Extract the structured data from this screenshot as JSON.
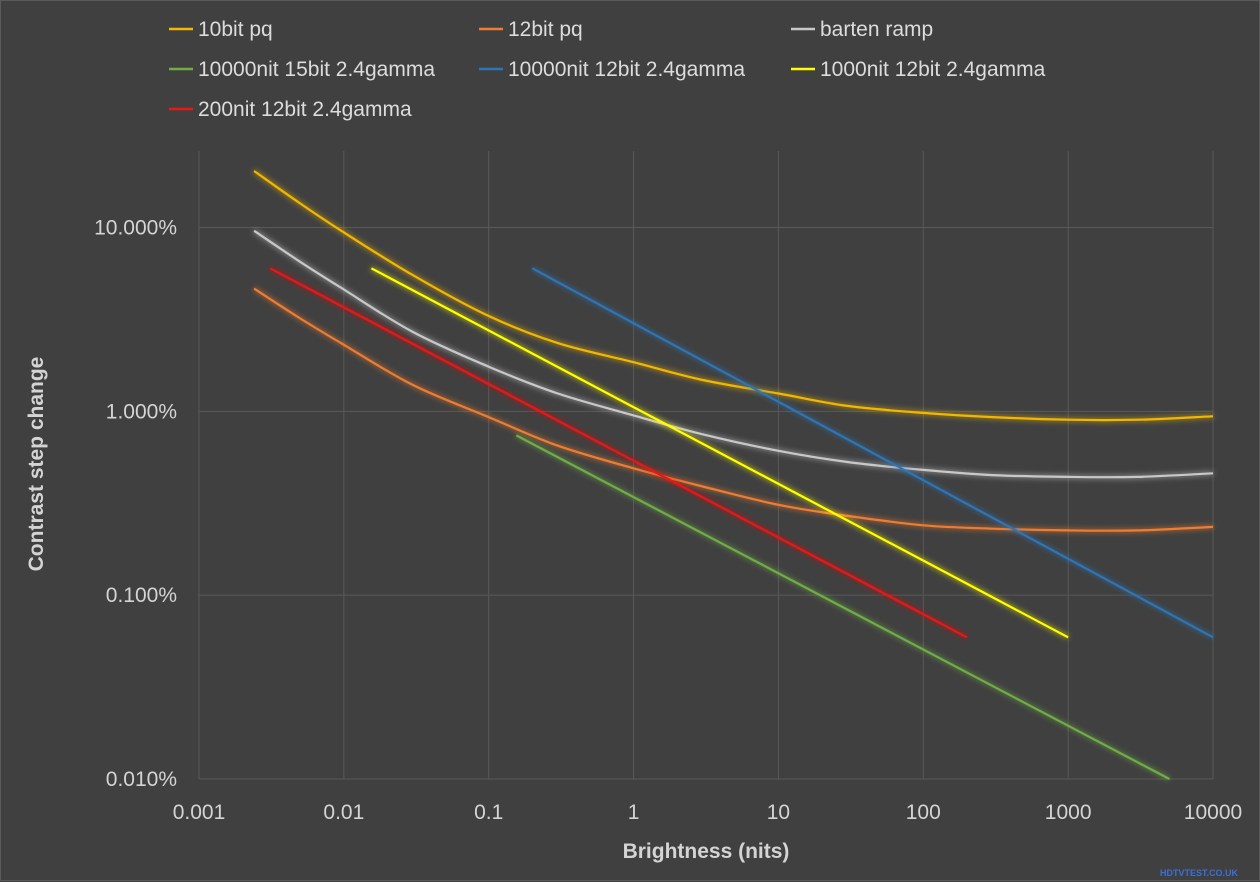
{
  "chart_data": {
    "type": "line",
    "title": "",
    "xlabel": "Brightness (nits)",
    "ylabel": "Contrast step change",
    "x_scale": "log",
    "y_scale": "log",
    "xlim": [
      0.001,
      10000
    ],
    "ylim": [
      0.0001,
      0.5
    ],
    "x_ticks": [
      {
        "value": 0.001,
        "label": "0.001"
      },
      {
        "value": 0.01,
        "label": "0.01"
      },
      {
        "value": 0.1,
        "label": "0.1"
      },
      {
        "value": 1,
        "label": "1"
      },
      {
        "value": 10,
        "label": "10"
      },
      {
        "value": 100,
        "label": "100"
      },
      {
        "value": 1000,
        "label": "1000"
      },
      {
        "value": 10000,
        "label": "10000"
      }
    ],
    "y_ticks": [
      {
        "value": 0.0001,
        "label": "0.010%"
      },
      {
        "value": 0.001,
        "label": "0.100%"
      },
      {
        "value": 0.01,
        "label": "1.000%"
      },
      {
        "value": 0.1,
        "label": "10.000%"
      }
    ],
    "grid": true,
    "legend_position": "top",
    "series": [
      {
        "name": "10bit pq",
        "color": "#f2b705",
        "x": [
          0.0024,
          0.005,
          0.01,
          0.03,
          0.1,
          0.3,
          1,
          3,
          10,
          30,
          100,
          300,
          1000,
          3000,
          10000
        ],
        "y": [
          0.203,
          0.135,
          0.094,
          0.055,
          0.033,
          0.0235,
          0.0185,
          0.0148,
          0.0125,
          0.0107,
          0.0098,
          0.0093,
          0.009,
          0.009,
          0.0094
        ]
      },
      {
        "name": "12bit pq",
        "color": "#ee7d31",
        "x": [
          0.0024,
          0.005,
          0.01,
          0.03,
          0.1,
          0.3,
          1,
          3,
          10,
          30,
          100,
          300,
          1000,
          3000,
          10000
        ],
        "y": [
          0.0465,
          0.032,
          0.023,
          0.0139,
          0.0093,
          0.0065,
          0.0049,
          0.0039,
          0.0031,
          0.0027,
          0.0024,
          0.0023,
          0.00225,
          0.00225,
          0.00235
        ]
      },
      {
        "name": "barten ramp",
        "color": "#c8c8c8",
        "x": [
          0.0024,
          0.005,
          0.01,
          0.03,
          0.1,
          0.3,
          1,
          3,
          10,
          30,
          100,
          300,
          1000,
          3000,
          10000
        ],
        "y": [
          0.096,
          0.065,
          0.046,
          0.027,
          0.0175,
          0.0125,
          0.0095,
          0.0075,
          0.0061,
          0.0053,
          0.0048,
          0.0045,
          0.0044,
          0.0044,
          0.0046
        ]
      },
      {
        "name": "10000nit 15bit 2.4gamma",
        "color": "#70ad47",
        "x": [
          0.155,
          5000
        ],
        "y": [
          0.0074,
          0.0001
        ]
      },
      {
        "name": "10000nit 12bit 2.4gamma",
        "color": "#2e75b6",
        "x": [
          0.2,
          10000
        ],
        "y": [
          0.06,
          0.00059
        ]
      },
      {
        "name": "1000nit 12bit 2.4gamma",
        "color": "#ffff00",
        "x": [
          0.0155,
          1000
        ],
        "y": [
          0.06,
          0.00059
        ]
      },
      {
        "name": "200nit 12bit 2.4gamma",
        "color": "#e81818",
        "x": [
          0.0031,
          200
        ],
        "y": [
          0.06,
          0.00059
        ]
      }
    ]
  },
  "watermark": "HDTVTEST.CO.UK"
}
